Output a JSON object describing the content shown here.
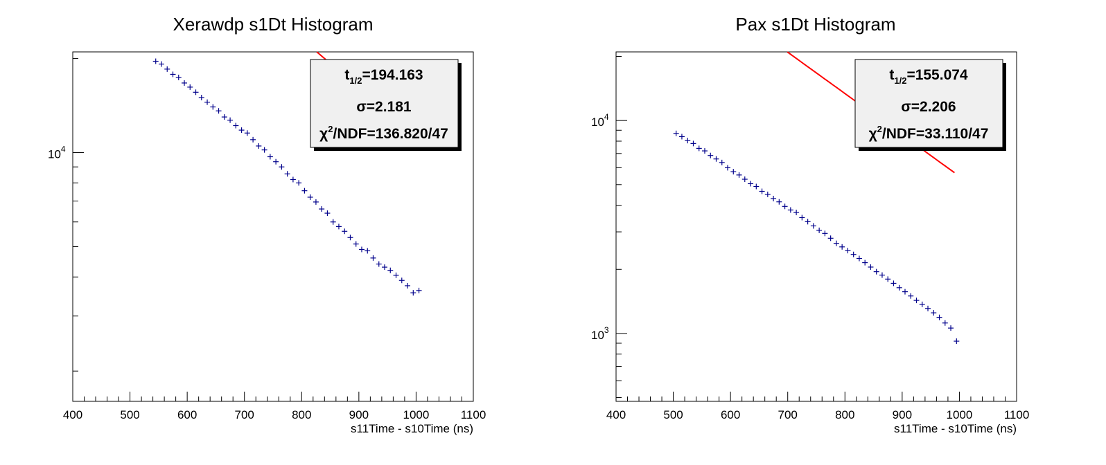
{
  "chart_data": [
    {
      "type": "scatter",
      "title": "Xerawdp s1Dt Histogram",
      "xlabel": "s11Time - s10Time (ns)",
      "ylabel": "",
      "xlim": [
        400,
        1100
      ],
      "ylim": [
        1600,
        21000
      ],
      "yscale": "log",
      "xticks": [
        400,
        500,
        600,
        700,
        800,
        900,
        1000,
        1100
      ],
      "yticks": [
        {
          "value": 10000,
          "base": "10",
          "exp": "4"
        }
      ],
      "stats": {
        "thalf_label": "t",
        "thalf_sub": "1/2",
        "thalf_value": "=194.163",
        "sigma": "σ=2.181",
        "chi_sym": "χ",
        "chi_sup": "2",
        "chi_value": "/NDF=136.820/47"
      },
      "series": [
        {
          "kind": "points",
          "color": "#00008b",
          "points": [
            [
              545,
              19600
            ],
            [
              555,
              19200
            ],
            [
              565,
              18500
            ],
            [
              575,
              17800
            ],
            [
              585,
              17400
            ],
            [
              595,
              16700
            ],
            [
              605,
              16200
            ],
            [
              615,
              15600
            ],
            [
              625,
              15000
            ],
            [
              635,
              14500
            ],
            [
              645,
              14000
            ],
            [
              655,
              13600
            ],
            [
              665,
              13000
            ],
            [
              675,
              12700
            ],
            [
              685,
              12200
            ],
            [
              695,
              11800
            ],
            [
              705,
              11550
            ],
            [
              715,
              11000
            ],
            [
              725,
              10500
            ],
            [
              735,
              10200
            ],
            [
              745,
              9700
            ],
            [
              755,
              9350
            ],
            [
              765,
              9000
            ],
            [
              775,
              8550
            ],
            [
              785,
              8200
            ],
            [
              795,
              8000
            ],
            [
              805,
              7550
            ],
            [
              815,
              7200
            ],
            [
              825,
              6950
            ],
            [
              835,
              6600
            ],
            [
              845,
              6400
            ],
            [
              855,
              6000
            ],
            [
              865,
              5800
            ],
            [
              875,
              5600
            ],
            [
              885,
              5350
            ],
            [
              895,
              5100
            ],
            [
              905,
              4900
            ],
            [
              915,
              4850
            ],
            [
              925,
              4600
            ],
            [
              935,
              4400
            ],
            [
              945,
              4300
            ],
            [
              955,
              4200
            ],
            [
              965,
              4050
            ],
            [
              975,
              3900
            ],
            [
              985,
              3750
            ],
            [
              995,
              3560
            ],
            [
              1005,
              3620
            ]
          ]
        },
        {
          "kind": "fit",
          "color": "#ff0000",
          "x_start": 520,
          "x_end": 998,
          "y_at_x0": 96200,
          "thalf": 194.163
        }
      ]
    },
    {
      "type": "scatter",
      "title": "Pax s1Dt Histogram",
      "xlabel": "s11Time - s10Time (ns)",
      "ylabel": "",
      "xlim": [
        400,
        1100
      ],
      "ylim": [
        480,
        21000
      ],
      "yscale": "log",
      "xticks": [
        400,
        500,
        600,
        700,
        800,
        900,
        1000,
        1100
      ],
      "yticks": [
        {
          "value": 1000,
          "base": "10",
          "exp": "3"
        },
        {
          "value": 10000,
          "base": "10",
          "exp": "4"
        }
      ],
      "stats": {
        "thalf_label": "t",
        "thalf_sub": "1/2",
        "thalf_value": "=155.074",
        "sigma": "σ=2.206",
        "chi_sym": "χ",
        "chi_sup": "2",
        "chi_value": "/NDF=33.110/47"
      },
      "series": [
        {
          "kind": "points",
          "color": "#00008b",
          "points": [
            [
              505,
              8700
            ],
            [
              515,
              8400
            ],
            [
              525,
              8050
            ],
            [
              535,
              7800
            ],
            [
              545,
              7400
            ],
            [
              555,
              7200
            ],
            [
              565,
              6850
            ],
            [
              575,
              6600
            ],
            [
              585,
              6350
            ],
            [
              595,
              6000
            ],
            [
              605,
              5750
            ],
            [
              615,
              5550
            ],
            [
              625,
              5300
            ],
            [
              635,
              5050
            ],
            [
              645,
              4900
            ],
            [
              655,
              4650
            ],
            [
              665,
              4500
            ],
            [
              675,
              4300
            ],
            [
              685,
              4150
            ],
            [
              695,
              3950
            ],
            [
              705,
              3800
            ],
            [
              715,
              3700
            ],
            [
              725,
              3500
            ],
            [
              735,
              3350
            ],
            [
              745,
              3200
            ],
            [
              755,
              3050
            ],
            [
              765,
              2950
            ],
            [
              775,
              2800
            ],
            [
              785,
              2650
            ],
            [
              795,
              2550
            ],
            [
              805,
              2450
            ],
            [
              815,
              2350
            ],
            [
              825,
              2250
            ],
            [
              835,
              2150
            ],
            [
              845,
              2050
            ],
            [
              855,
              1950
            ],
            [
              865,
              1880
            ],
            [
              875,
              1800
            ],
            [
              885,
              1720
            ],
            [
              895,
              1640
            ],
            [
              905,
              1570
            ],
            [
              915,
              1500
            ],
            [
              925,
              1430
            ],
            [
              935,
              1370
            ],
            [
              945,
              1310
            ],
            [
              955,
              1250
            ],
            [
              965,
              1190
            ],
            [
              975,
              1120
            ],
            [
              985,
              1060
            ],
            [
              995,
              920
            ]
          ]
        },
        {
          "kind": "fit",
          "color": "#ff0000",
          "x_start": 500,
          "x_end": 995,
          "y_at_x0": 80000,
          "thalf": 155.074
        }
      ]
    }
  ]
}
